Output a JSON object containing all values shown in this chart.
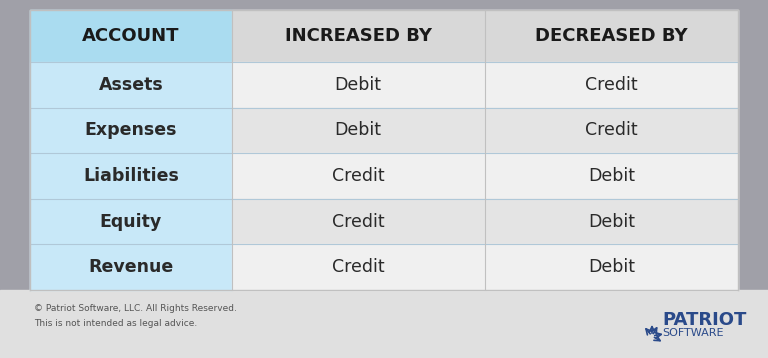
{
  "bg_color": "#a0a0a8",
  "footer_bg": "#e8e8e8",
  "table_bg": "#ffffff",
  "header_col1_bg": "#aadcf0",
  "header_col2_bg": "#d8d8d8",
  "header_col3_bg": "#d8d8d8",
  "row_col1_bg": "#c8e8f8",
  "row_col2_bg": "#f0f0f0",
  "row_col3_bg": "#f0f0f0",
  "alt_row_col2_bg": "#e4e4e4",
  "alt_row_col3_bg": "#e4e4e4",
  "header_text_color": "#1a1a1a",
  "body_text_color": "#2a2a2a",
  "col1_text_color": "#1a1a1a",
  "footer_text_color": "#555555",
  "patriot_color": "#2a4a8a",
  "columns": [
    "ACCOUNT",
    "INCREASED BY",
    "DECREASED BY"
  ],
  "rows": [
    [
      "Assets",
      "Debit",
      "Credit"
    ],
    [
      "Expenses",
      "Debit",
      "Credit"
    ],
    [
      "Liabilities",
      "Credit",
      "Debit"
    ],
    [
      "Equity",
      "Credit",
      "Debit"
    ],
    [
      "Revenue",
      "Credit",
      "Debit"
    ]
  ],
  "footer_left": "© Patriot Software, LLC. All Rights Reserved.\nThis is not intended as legal advice.",
  "patriot_logo_text": "PATRIOT",
  "patriot_sub_text": "SOFTWARE"
}
